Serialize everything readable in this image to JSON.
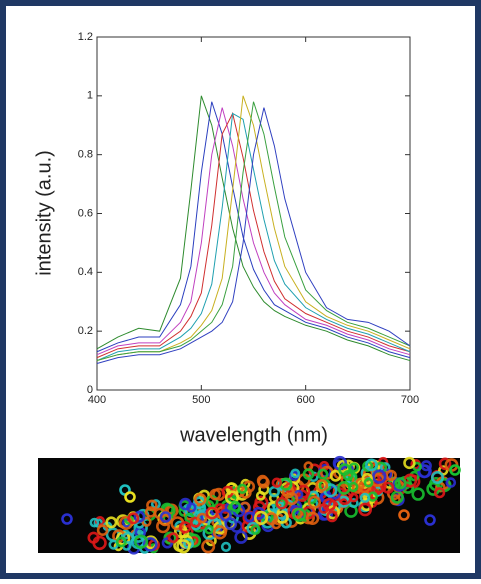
{
  "chart_data": {
    "type": "line",
    "x_label": "wavelength (nm)",
    "y_label": "intensity (a.u.)",
    "x": [
      400,
      420,
      440,
      460,
      480,
      490,
      500,
      510,
      520,
      530,
      540,
      550,
      560,
      570,
      580,
      600,
      620,
      640,
      660,
      680,
      700
    ],
    "series": [
      {
        "color": "#2e8b2e",
        "values": [
          0.14,
          0.18,
          0.21,
          0.2,
          0.38,
          0.68,
          1,
          0.9,
          0.72,
          0.55,
          0.42,
          0.35,
          0.3,
          0.27,
          0.25,
          0.22,
          0.2,
          0.17,
          0.15,
          0.12,
          0.1
        ]
      },
      {
        "color": "#2b3fbf",
        "values": [
          0.13,
          0.16,
          0.18,
          0.18,
          0.29,
          0.42,
          0.74,
          0.98,
          0.87,
          0.69,
          0.52,
          0.41,
          0.34,
          0.29,
          0.27,
          0.23,
          0.21,
          0.18,
          0.16,
          0.13,
          0.11
        ]
      },
      {
        "color": "#c040c0",
        "values": [
          0.12,
          0.15,
          0.16,
          0.16,
          0.23,
          0.3,
          0.5,
          0.8,
          0.96,
          0.83,
          0.65,
          0.5,
          0.4,
          0.33,
          0.29,
          0.24,
          0.22,
          0.19,
          0.17,
          0.14,
          0.12
        ]
      },
      {
        "color": "#d03030",
        "values": [
          0.11,
          0.14,
          0.15,
          0.15,
          0.2,
          0.25,
          0.33,
          0.56,
          0.87,
          0.94,
          0.79,
          0.61,
          0.47,
          0.37,
          0.31,
          0.26,
          0.23,
          0.2,
          0.18,
          0.15,
          0.13
        ]
      },
      {
        "color": "#20a0b0",
        "values": [
          0.1,
          0.13,
          0.14,
          0.14,
          0.18,
          0.21,
          0.26,
          0.36,
          0.62,
          0.94,
          0.92,
          0.75,
          0.58,
          0.44,
          0.36,
          0.28,
          0.24,
          0.21,
          0.19,
          0.16,
          0.13
        ]
      },
      {
        "color": "#c8b020",
        "values": [
          0.1,
          0.12,
          0.13,
          0.13,
          0.16,
          0.18,
          0.22,
          0.27,
          0.38,
          0.68,
          1,
          0.9,
          0.72,
          0.55,
          0.42,
          0.3,
          0.25,
          0.22,
          0.2,
          0.17,
          0.14
        ]
      },
      {
        "color": "#3aa040",
        "values": [
          0.1,
          0.12,
          0.13,
          0.13,
          0.15,
          0.17,
          0.2,
          0.23,
          0.29,
          0.42,
          0.74,
          0.98,
          0.87,
          0.69,
          0.52,
          0.34,
          0.27,
          0.23,
          0.21,
          0.18,
          0.15
        ]
      },
      {
        "color": "#3040c0",
        "values": [
          0.09,
          0.11,
          0.12,
          0.12,
          0.14,
          0.16,
          0.18,
          0.2,
          0.23,
          0.3,
          0.5,
          0.8,
          0.96,
          0.83,
          0.65,
          0.4,
          0.28,
          0.24,
          0.23,
          0.2,
          0.15
        ]
      }
    ],
    "xlim": [
      400,
      700
    ],
    "xticks": [
      400,
      500,
      600,
      700
    ],
    "ylim": [
      0,
      1.2
    ],
    "yticks": [
      0,
      0.2,
      0.4,
      0.6,
      0.8,
      1,
      1.2
    ],
    "grid": false
  }
}
